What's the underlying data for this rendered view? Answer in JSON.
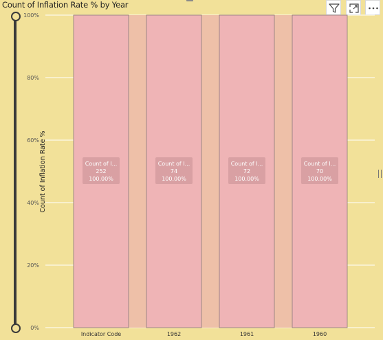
{
  "header": {
    "title": "Count of Inflation Rate % by Year",
    "filter_icon": "filter-icon",
    "focus_icon": "focus-mode-icon",
    "more_icon": "more-options-icon"
  },
  "colors": {
    "background": "#F2E199",
    "bar_fill": "#EFB4B6",
    "bar_border": "#8a7a7a",
    "band_fill": "#EEC0A8",
    "gridline": "#ffffff",
    "label_box": "#D9A0A3"
  },
  "chart_data": {
    "type": "bar",
    "subtype": "100% stacked column",
    "title": "Count of Inflation Rate % by Year",
    "ylabel": "Count of Inflation Rate %",
    "xlabel": "",
    "ylim": [
      0,
      1
    ],
    "y_ticks": [
      "0%",
      "20%",
      "40%",
      "60%",
      "80%",
      "100%"
    ],
    "grid": true,
    "categories": [
      "Indicator Code",
      "1962",
      "1961",
      "1960"
    ],
    "series": [
      {
        "values": [
          1,
          1,
          1,
          1
        ],
        "counts": [
          252,
          74,
          72,
          70
        ],
        "label_name": "Count of I...",
        "label_counts": [
          "252",
          "74",
          "72",
          "70"
        ],
        "label_percents": [
          "100.00%",
          "100.00%",
          "100.00%",
          "100.00%"
        ]
      }
    ]
  }
}
